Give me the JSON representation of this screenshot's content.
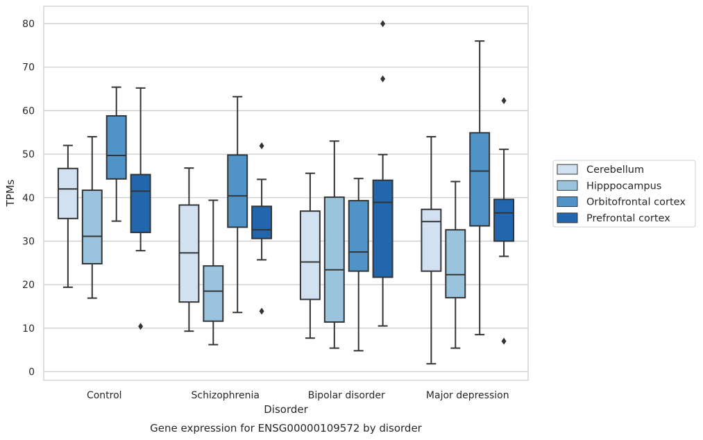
{
  "caption": "Gene expression for ENSG00000109572 by disorder",
  "colors": {
    "Cerebellum": "#d2e1f1",
    "Hipppocampus": "#9ac3de",
    "Orbitofrontal cortex": "#5093c7",
    "Prefrontal cortex": "#2266ad",
    "line": "#333333",
    "grid": "#cccccc",
    "spine": "#cccccc"
  },
  "chart_data": {
    "type": "box",
    "xlabel": "Disorder",
    "ylabel": "TPMs",
    "ylim": [
      -2,
      84
    ],
    "yticks": [
      0,
      10,
      20,
      30,
      40,
      50,
      60,
      70,
      80
    ],
    "grid": "horizontal",
    "legend_position": "right",
    "categories": [
      "Control",
      "Schizophrenia",
      "Bipolar disorder",
      "Major depression"
    ],
    "series": [
      {
        "name": "Cerebellum",
        "boxes": [
          {
            "whislo": 19.4,
            "q1": 35.2,
            "med": 42.0,
            "q3": 46.7,
            "whishi": 52.0,
            "fliers": []
          },
          {
            "whislo": 9.3,
            "q1": 16.0,
            "med": 27.3,
            "q3": 38.3,
            "whishi": 46.8,
            "fliers": []
          },
          {
            "whislo": 7.7,
            "q1": 16.6,
            "med": 25.2,
            "q3": 36.9,
            "whishi": 45.6,
            "fliers": []
          },
          {
            "whislo": 1.8,
            "q1": 23.1,
            "med": 34.5,
            "q3": 37.3,
            "whishi": 54.0,
            "fliers": []
          }
        ]
      },
      {
        "name": "Hipppocampus",
        "boxes": [
          {
            "whislo": 16.9,
            "q1": 24.8,
            "med": 31.1,
            "q3": 41.7,
            "whishi": 54.0,
            "fliers": []
          },
          {
            "whislo": 6.2,
            "q1": 11.6,
            "med": 18.5,
            "q3": 24.3,
            "whishi": 39.4,
            "fliers": []
          },
          {
            "whislo": 5.4,
            "q1": 11.4,
            "med": 23.4,
            "q3": 40.1,
            "whishi": 53.0,
            "fliers": []
          },
          {
            "whislo": 5.4,
            "q1": 17.0,
            "med": 22.3,
            "q3": 32.6,
            "whishi": 43.7,
            "fliers": []
          }
        ]
      },
      {
        "name": "Orbitofrontal cortex",
        "boxes": [
          {
            "whislo": 34.6,
            "q1": 44.3,
            "med": 49.7,
            "q3": 58.8,
            "whishi": 65.4,
            "fliers": []
          },
          {
            "whislo": 13.6,
            "q1": 33.2,
            "med": 40.4,
            "q3": 49.8,
            "whishi": 63.2,
            "fliers": []
          },
          {
            "whislo": 4.8,
            "q1": 23.1,
            "med": 27.5,
            "q3": 39.3,
            "whishi": 44.4,
            "fliers": []
          },
          {
            "whislo": 8.5,
            "q1": 33.5,
            "med": 46.1,
            "q3": 54.9,
            "whishi": 76.0,
            "fliers": []
          }
        ]
      },
      {
        "name": "Prefrontal cortex",
        "boxes": [
          {
            "whislo": 27.8,
            "q1": 32.0,
            "med": 41.5,
            "q3": 45.3,
            "whishi": 65.2,
            "fliers": [
              10.4
            ]
          },
          {
            "whislo": 25.7,
            "q1": 30.6,
            "med": 32.6,
            "q3": 38.0,
            "whishi": 44.2,
            "fliers": [
              13.9,
              51.9
            ]
          },
          {
            "whislo": 10.5,
            "q1": 21.7,
            "med": 38.9,
            "q3": 44.0,
            "whishi": 49.9,
            "fliers": [
              67.3,
              80.0
            ]
          },
          {
            "whislo": 26.5,
            "q1": 30.0,
            "med": 36.5,
            "q3": 39.6,
            "whishi": 51.1,
            "fliers": [
              7.0,
              62.3
            ]
          }
        ]
      }
    ]
  }
}
